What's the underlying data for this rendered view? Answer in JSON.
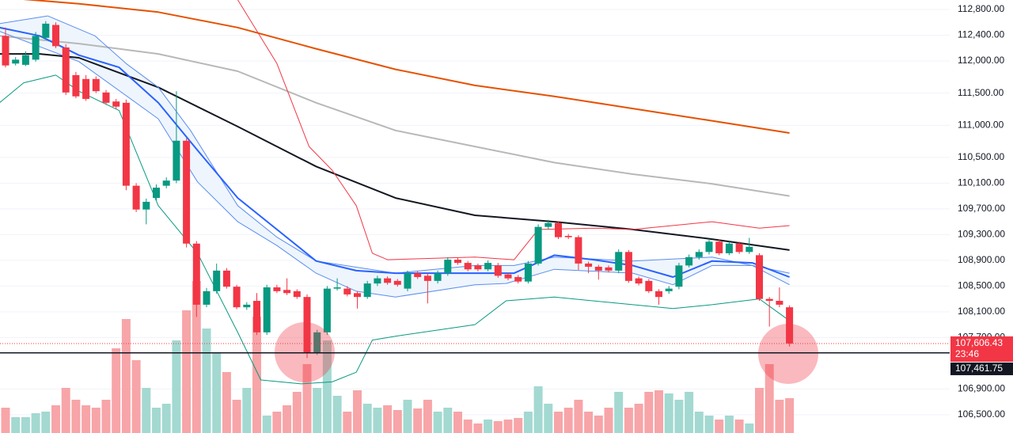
{
  "chart_data": {
    "type": "candlestick",
    "ylim": [
      106215,
      112948
    ],
    "yticks": [
      {
        "value": 112800,
        "label": "112,800.00"
      },
      {
        "value": 112400,
        "label": "112,400.00"
      },
      {
        "value": 112000,
        "label": "112,000.00"
      },
      {
        "value": 111500,
        "label": "111,500.00"
      },
      {
        "value": 111000,
        "label": "111,000.00"
      },
      {
        "value": 110500,
        "label": "110,500.00"
      },
      {
        "value": 110100,
        "label": "110,100.00"
      },
      {
        "value": 109700,
        "label": "109,700.00"
      },
      {
        "value": 109300,
        "label": "109,300.00"
      },
      {
        "value": 108900,
        "label": "108,900.00"
      },
      {
        "value": 108500,
        "label": "108,500.00"
      },
      {
        "value": 108100,
        "label": "108,100.00"
      },
      {
        "value": 107700,
        "label": "107,700.00"
      },
      {
        "value": 106900,
        "label": "106,900.00"
      },
      {
        "value": 106500,
        "label": "106,500.00"
      }
    ],
    "grid": true,
    "up_color": "#089981",
    "down_color": "#f23645",
    "volume_up_color": "#a3d9d1",
    "volume_down_color": "#f7a5a8",
    "volume_lim": [
      0,
      547
    ],
    "candles": {
      "open": [
        112390,
        111960,
        111940,
        112020,
        112360,
        112560,
        112210,
        111780,
        111720,
        111720,
        111510,
        111370,
        111350,
        110060,
        109690,
        109870,
        110060,
        110140,
        110760,
        109160,
        108210,
        108420,
        108740,
        108490,
        108170,
        108270,
        107780,
        108480,
        108440,
        108420,
        108330,
        107470,
        107780,
        108460,
        108460,
        108390,
        108330,
        108540,
        108620,
        108580,
        108460,
        108700,
        108660,
        108580,
        108700,
        108910,
        108860,
        108820,
        108760,
        108820,
        108680,
        108640,
        108570,
        108850,
        109420,
        109480,
        109280,
        109260,
        108850,
        108800,
        108790,
        108740,
        109030,
        108620,
        108580,
        108420,
        108420,
        108490,
        108820,
        108950,
        109030,
        109190,
        109010,
        109160,
        109030,
        108980,
        108300,
        108270,
        108170
      ],
      "high": [
        112520,
        112060,
        112150,
        112450,
        112620,
        112600,
        112260,
        111830,
        111780,
        111760,
        111550,
        111410,
        111400,
        110100,
        109860,
        110080,
        110190,
        111530,
        110800,
        109200,
        108470,
        108850,
        108780,
        108520,
        108250,
        108390,
        108520,
        108520,
        108620,
        108450,
        108370,
        107820,
        108500,
        108620,
        108500,
        108420,
        108580,
        108660,
        108650,
        108610,
        108740,
        108730,
        108700,
        108740,
        108950,
        108940,
        108890,
        108850,
        108900,
        108860,
        108710,
        108670,
        108890,
        109460,
        109530,
        109510,
        109310,
        109290,
        108880,
        108830,
        108820,
        109070,
        109060,
        108650,
        108610,
        108450,
        108500,
        108860,
        108990,
        109070,
        109230,
        109220,
        109190,
        109190,
        109250,
        109010,
        108330,
        108480,
        108200
      ],
      "low": [
        111900,
        111930,
        111920,
        111990,
        112330,
        112200,
        111470,
        111420,
        111380,
        111500,
        111320,
        111250,
        109990,
        109650,
        109460,
        109830,
        110020,
        110100,
        109100,
        108020,
        108170,
        108380,
        108460,
        108140,
        108130,
        107740,
        107740,
        108390,
        108360,
        108300,
        107380,
        107430,
        107740,
        108430,
        108340,
        108150,
        108300,
        108500,
        108520,
        108490,
        108420,
        108610,
        108230,
        108540,
        108660,
        108830,
        108730,
        108730,
        108730,
        108630,
        108590,
        108540,
        108540,
        108820,
        109380,
        109230,
        109230,
        108750,
        108700,
        108600,
        108710,
        108700,
        108550,
        108510,
        108390,
        108210,
        108380,
        108450,
        108790,
        108910,
        108990,
        108980,
        108980,
        109000,
        109000,
        108270,
        107870,
        108170,
        107560
      ],
      "close": [
        111930,
        112020,
        112090,
        112390,
        112580,
        112230,
        111510,
        111450,
        111410,
        111530,
        111350,
        111290,
        110060,
        109690,
        109810,
        110030,
        110140,
        110760,
        109160,
        108210,
        108420,
        108740,
        108490,
        108170,
        108210,
        107780,
        108480,
        108420,
        108390,
        108330,
        107470,
        107780,
        108460,
        108480,
        108370,
        108330,
        108540,
        108620,
        108550,
        108520,
        108700,
        108640,
        108580,
        108700,
        108910,
        108860,
        108760,
        108760,
        108860,
        108660,
        108620,
        108570,
        108850,
        109420,
        109480,
        109260,
        109260,
        108850,
        108800,
        108740,
        108740,
        109030,
        108580,
        108540,
        108420,
        108330,
        108460,
        108820,
        108950,
        109030,
        109190,
        109010,
        109160,
        109030,
        109110,
        108300,
        108270,
        108210,
        107606.43
      ],
      "volume": [
        32,
        20,
        20,
        25,
        27,
        35,
        57,
        42,
        35,
        32,
        42,
        107,
        144,
        92,
        57,
        32,
        37,
        117,
        155,
        192,
        132,
        102,
        77,
        42,
        57,
        147,
        22,
        27,
        35,
        52,
        87,
        57,
        117,
        47,
        27,
        54,
        37,
        32,
        35,
        29,
        42,
        31,
        42,
        27,
        32,
        27,
        17,
        12,
        17,
        15,
        17,
        19,
        27,
        59,
        37,
        27,
        32,
        42,
        27,
        22,
        32,
        52,
        32,
        37,
        52,
        54,
        50,
        42,
        52,
        27,
        22,
        17,
        22,
        17,
        12,
        57,
        87,
        42,
        44
      ]
    },
    "lines": [
      {
        "color": "#e65100",
        "width": 2,
        "x": [
          -0.6,
          7.3,
          15.2,
          23.1,
          30.9,
          38.8,
          46.7,
          54.6,
          62.4,
          70.3,
          78
        ],
        "values": [
          112990,
          112890,
          112760,
          112520,
          112190,
          111870,
          111620,
          111450,
          111260,
          111070,
          110880
        ]
      },
      {
        "color": "#b8b8b8",
        "width": 2,
        "x": [
          -0.6,
          7.3,
          15.2,
          23.1,
          30.9,
          38.8,
          46.7,
          54.6,
          62.4,
          70.3,
          78
        ],
        "values": [
          112390,
          112270,
          112110,
          111840,
          111350,
          110920,
          110670,
          110420,
          110240,
          110090,
          109900
        ]
      },
      {
        "color": "#131722",
        "width": 2,
        "x": [
          -0.6,
          3.4,
          7.3,
          15.2,
          23.1,
          30.9,
          38.8,
          46.7,
          54.6,
          62.4,
          70.3,
          78
        ],
        "values": [
          112110,
          112110,
          112050,
          111590,
          110980,
          110360,
          109870,
          109600,
          109500,
          109380,
          109230,
          109060
        ]
      },
      {
        "color": "#f23645",
        "width": 1,
        "x": [
          23.1,
          27,
          30.2,
          32.5,
          34.9,
          36.5,
          38,
          46.7,
          50.6,
          53,
          58.5,
          62.4,
          70.3,
          75,
          78
        ],
        "values": [
          112950,
          111960,
          110670,
          110300,
          109750,
          109010,
          108910,
          108950,
          108910,
          109380,
          109400,
          109380,
          109500,
          109400,
          109440
        ]
      },
      {
        "color": "#089981",
        "width": 1,
        "x": [
          -0.6,
          1.8,
          5,
          7.3,
          11.3,
          15.2,
          19.1,
          23.1,
          25.4,
          29.4,
          32.5,
          34.9,
          36.5,
          38.8,
          46.7,
          49.8,
          54.6,
          62.4,
          66.4,
          70.3,
          75,
          78
        ],
        "values": [
          111350,
          111660,
          111780,
          111530,
          111230,
          109750,
          109010,
          107780,
          107040,
          106980,
          107010,
          107160,
          107660,
          107720,
          107900,
          108270,
          108330,
          108210,
          108150,
          108210,
          108300,
          107960
        ]
      },
      {
        "color": "#5b8def",
        "width": 1,
        "x": [
          -0.6,
          4.2,
          8.9,
          12,
          15.2,
          18.4,
          23.1,
          27,
          30.9,
          38.8,
          46.7,
          50.6,
          54.6,
          62.4,
          70.3,
          78
        ],
        "values": [
          112580,
          112700,
          112390,
          111960,
          111590,
          110920,
          109750,
          109260,
          108890,
          108700,
          108820,
          108820,
          108950,
          108890,
          108950,
          108700
        ]
      },
      {
        "color": "#5b8def",
        "width": 1,
        "x": [
          -0.6,
          7.3,
          15.2,
          19.1,
          23.1,
          27,
          30.9,
          34.9,
          38.8,
          46.7,
          49.8,
          54.6,
          62.4,
          66.4,
          70.3,
          74.3,
          78
        ],
        "values": [
          112460,
          111990,
          111100,
          110120,
          109500,
          109130,
          108700,
          108420,
          108330,
          108520,
          108540,
          108760,
          108700,
          108520,
          108820,
          108820,
          108520
        ]
      },
      {
        "color": "#2962ff",
        "width": 2,
        "x": [
          -0.6,
          3.4,
          7.3,
          11.3,
          15.2,
          19.1,
          23.1,
          27,
          30.9,
          34.9,
          38.8,
          46.7,
          50.6,
          54.6,
          58.5,
          62.4,
          66.4,
          70.3,
          74.3,
          78
        ],
        "values": [
          112520,
          112390,
          112090,
          111900,
          111350,
          110610,
          109870,
          109380,
          108890,
          108740,
          108700,
          108700,
          108700,
          108980,
          108910,
          108820,
          108640,
          108890,
          108860,
          108640
        ]
      }
    ],
    "last_price": {
      "value": 107606.43,
      "label": "107,606.43"
    },
    "countdown": "23:46",
    "line_price": {
      "value": 107461.75,
      "label": "107,461.75"
    }
  }
}
